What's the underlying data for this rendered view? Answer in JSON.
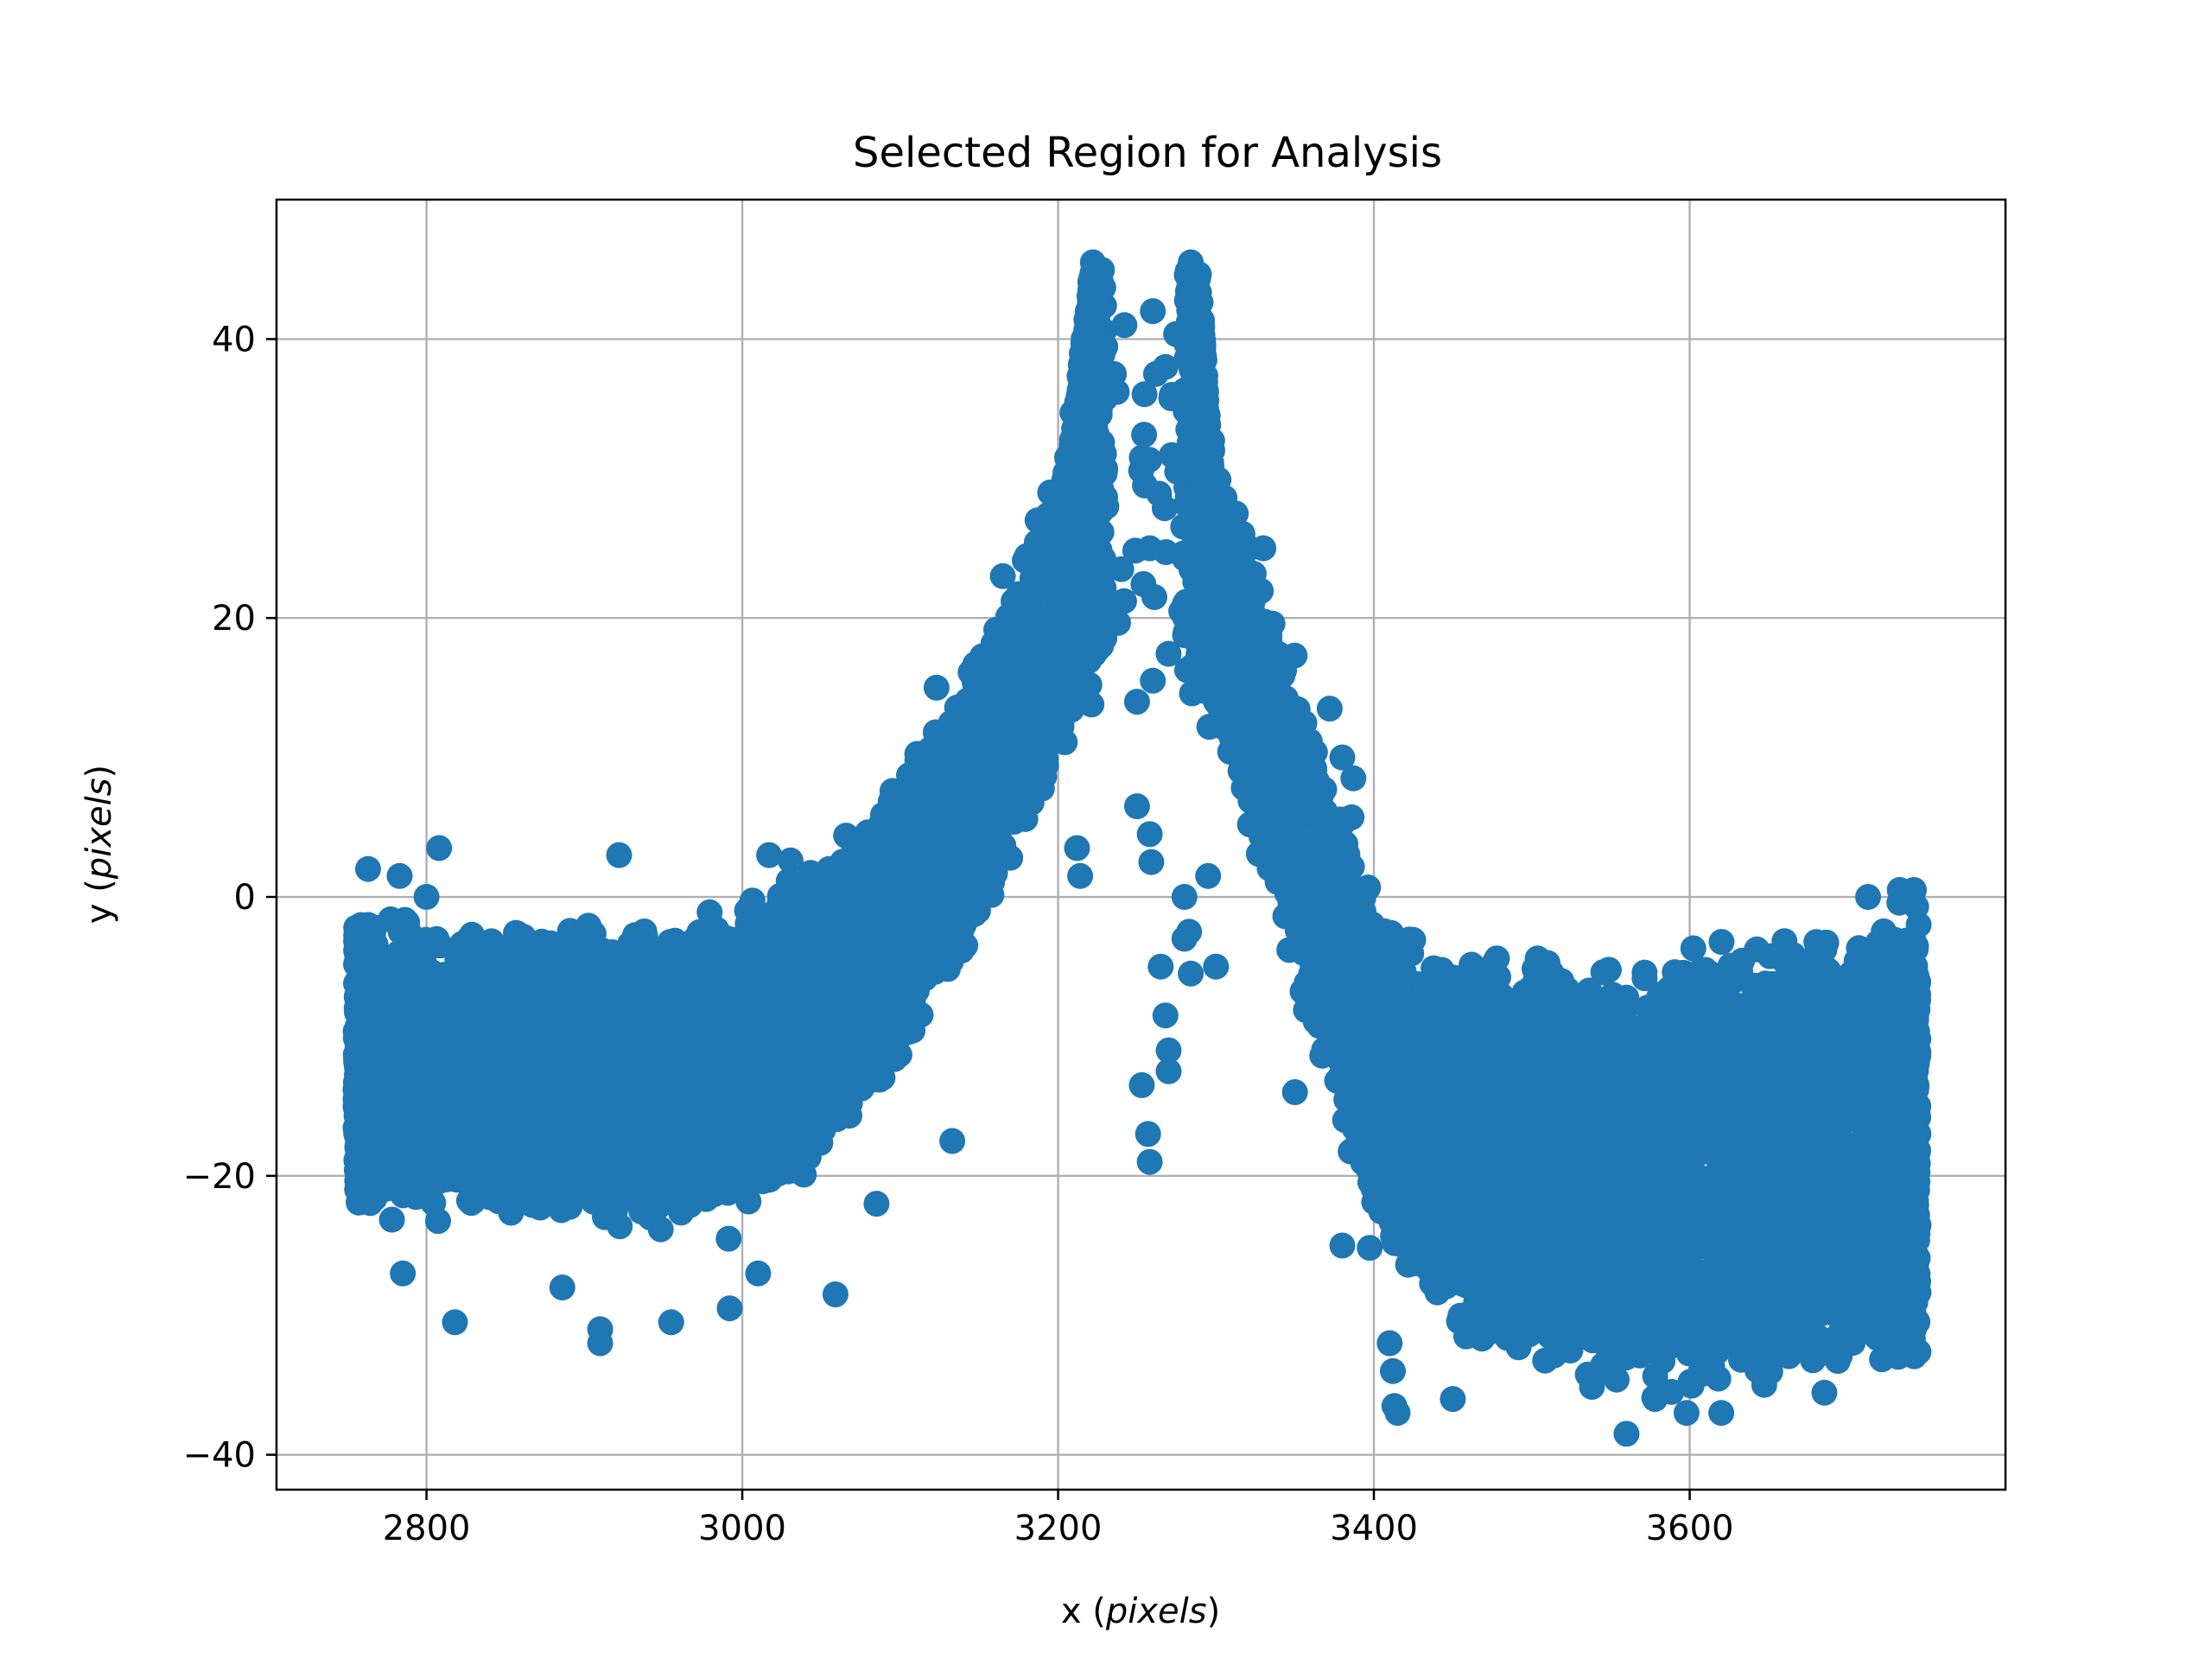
{
  "chart_data": {
    "type": "scatter",
    "title": "Selected Region for Analysis",
    "xlabel_prefix": "x (",
    "xlabel_italic": "pixels",
    "xlabel_suffix": ")",
    "ylabel_prefix": "y (",
    "ylabel_italic": "pixels",
    "ylabel_suffix": ")",
    "xlim": [
      2705,
      3800
    ],
    "ylim": [
      -42.5,
      50
    ],
    "xticks": [
      2800,
      3000,
      3200,
      3400,
      3600
    ],
    "xtick_labels": [
      "2800",
      "3000",
      "3200",
      "3400",
      "3600"
    ],
    "yticks": [
      -40,
      -20,
      0,
      20,
      40
    ],
    "ytick_labels": [
      "−40",
      "−20",
      "0",
      "20",
      "40"
    ],
    "grid": true,
    "marker_color": "#1f77b4",
    "x_range": [
      2755,
      3745
    ],
    "trend": [
      {
        "x": 2755,
        "y": -12
      },
      {
        "x": 2800,
        "y": -12
      },
      {
        "x": 2900,
        "y": -13
      },
      {
        "x": 3000,
        "y": -12
      },
      {
        "x": 3050,
        "y": -8
      },
      {
        "x": 3100,
        "y": -2
      },
      {
        "x": 3150,
        "y": 8
      },
      {
        "x": 3200,
        "y": 20
      },
      {
        "x": 3225,
        "y": 30
      },
      {
        "x": 3285,
        "y": 30
      },
      {
        "x": 3300,
        "y": 22
      },
      {
        "x": 3350,
        "y": 6
      },
      {
        "x": 3400,
        "y": -12
      },
      {
        "x": 3450,
        "y": -18
      },
      {
        "x": 3550,
        "y": -20
      },
      {
        "x": 3650,
        "y": -19
      },
      {
        "x": 3745,
        "y": -17
      }
    ],
    "spread": [
      {
        "x": 2755,
        "s": 9
      },
      {
        "x": 3000,
        "s": 10
      },
      {
        "x": 3100,
        "s": 9
      },
      {
        "x": 3200,
        "s": 9
      },
      {
        "x": 3225,
        "s": 14
      },
      {
        "x": 3285,
        "s": 14
      },
      {
        "x": 3300,
        "s": 9
      },
      {
        "x": 3400,
        "s": 10
      },
      {
        "x": 3500,
        "s": 13
      },
      {
        "x": 3745,
        "s": 15
      }
    ],
    "outliers": [
      {
        "x": 3222,
        "y": 45.5
      },
      {
        "x": 3224,
        "y": 44
      },
      {
        "x": 3226,
        "y": 42
      },
      {
        "x": 3284,
        "y": 45.5
      },
      {
        "x": 3286,
        "y": 44
      },
      {
        "x": 3288,
        "y": 42
      },
      {
        "x": 3242,
        "y": 41
      },
      {
        "x": 3260,
        "y": 42
      },
      {
        "x": 3262,
        "y": 37.5
      },
      {
        "x": 3268,
        "y": 38
      },
      {
        "x": 3272,
        "y": 36
      },
      {
        "x": 3253,
        "y": 31.5
      },
      {
        "x": 3255,
        "y": 29.5
      },
      {
        "x": 3258,
        "y": 25
      },
      {
        "x": 3261,
        "y": 21.5
      },
      {
        "x": 3240,
        "y": 23.5
      },
      {
        "x": 3250,
        "y": 14
      },
      {
        "x": 3260,
        "y": 15.5
      },
      {
        "x": 3250,
        "y": 6.5
      },
      {
        "x": 3258,
        "y": 4.5
      },
      {
        "x": 3259,
        "y": 2.5
      },
      {
        "x": 3280,
        "y": 0
      },
      {
        "x": 3283,
        "y": -2.5
      },
      {
        "x": 3280,
        "y": -3
      },
      {
        "x": 3265,
        "y": -5
      },
      {
        "x": 3284,
        "y": -5.5
      },
      {
        "x": 3268,
        "y": -8.5
      },
      {
        "x": 3270,
        "y": -11
      },
      {
        "x": 3270,
        "y": -12.5
      },
      {
        "x": 3253,
        "y": -13.5
      },
      {
        "x": 3257,
        "y": -17
      },
      {
        "x": 3258,
        "y": -19
      },
      {
        "x": 3212,
        "y": 3.5
      },
      {
        "x": 3214,
        "y": 1.5
      },
      {
        "x": 2808,
        "y": 3.5
      },
      {
        "x": 2922,
        "y": 3
      },
      {
        "x": 3017,
        "y": 3
      },
      {
        "x": 3123,
        "y": 15
      },
      {
        "x": 3165,
        "y": 23
      },
      {
        "x": 3187,
        "y": 27
      },
      {
        "x": 3195,
        "y": 29
      },
      {
        "x": 3135,
        "y": 12
      },
      {
        "x": 3330,
        "y": 25
      },
      {
        "x": 3372,
        "y": 13.5
      },
      {
        "x": 3380,
        "y": 10
      },
      {
        "x": 3387,
        "y": 8.5
      },
      {
        "x": 3295,
        "y": 1.5
      },
      {
        "x": 3300,
        "y": -5
      },
      {
        "x": 3010,
        "y": -27
      },
      {
        "x": 3059,
        "y": -28.5
      },
      {
        "x": 3085,
        "y": -22
      },
      {
        "x": 3133,
        "y": -17.5
      },
      {
        "x": 3350,
        "y": -14
      },
      {
        "x": 3380,
        "y": -25
      },
      {
        "x": 2785,
        "y": -27
      },
      {
        "x": 2818,
        "y": -30.5
      },
      {
        "x": 2886,
        "y": -28
      },
      {
        "x": 2910,
        "y": -31
      },
      {
        "x": 2910,
        "y": -32
      },
      {
        "x": 2955,
        "y": -30.5
      },
      {
        "x": 2992,
        "y": -29.5
      },
      {
        "x": 3410,
        "y": -32
      },
      {
        "x": 3412,
        "y": -34
      },
      {
        "x": 3413,
        "y": -36.5
      },
      {
        "x": 3415,
        "y": -37
      },
      {
        "x": 3450,
        "y": -36
      },
      {
        "x": 3560,
        "y": -38.5
      },
      {
        "x": 3578,
        "y": -36
      },
      {
        "x": 3598,
        "y": -37
      },
      {
        "x": 3620,
        "y": -37
      },
      {
        "x": 3628,
        "y": -6
      },
      {
        "x": 3713,
        "y": 0
      },
      {
        "x": 3733,
        "y": 0.5
      },
      {
        "x": 3742,
        "y": 0.5
      },
      {
        "x": 3745,
        "y": -2
      },
      {
        "x": 2763,
        "y": 2
      },
      {
        "x": 2783,
        "y": 1.5
      },
      {
        "x": 2800,
        "y": 0
      },
      {
        "x": 3055,
        "y": 2
      },
      {
        "x": 3080,
        "y": 3
      }
    ],
    "approx_point_count": 9000
  }
}
